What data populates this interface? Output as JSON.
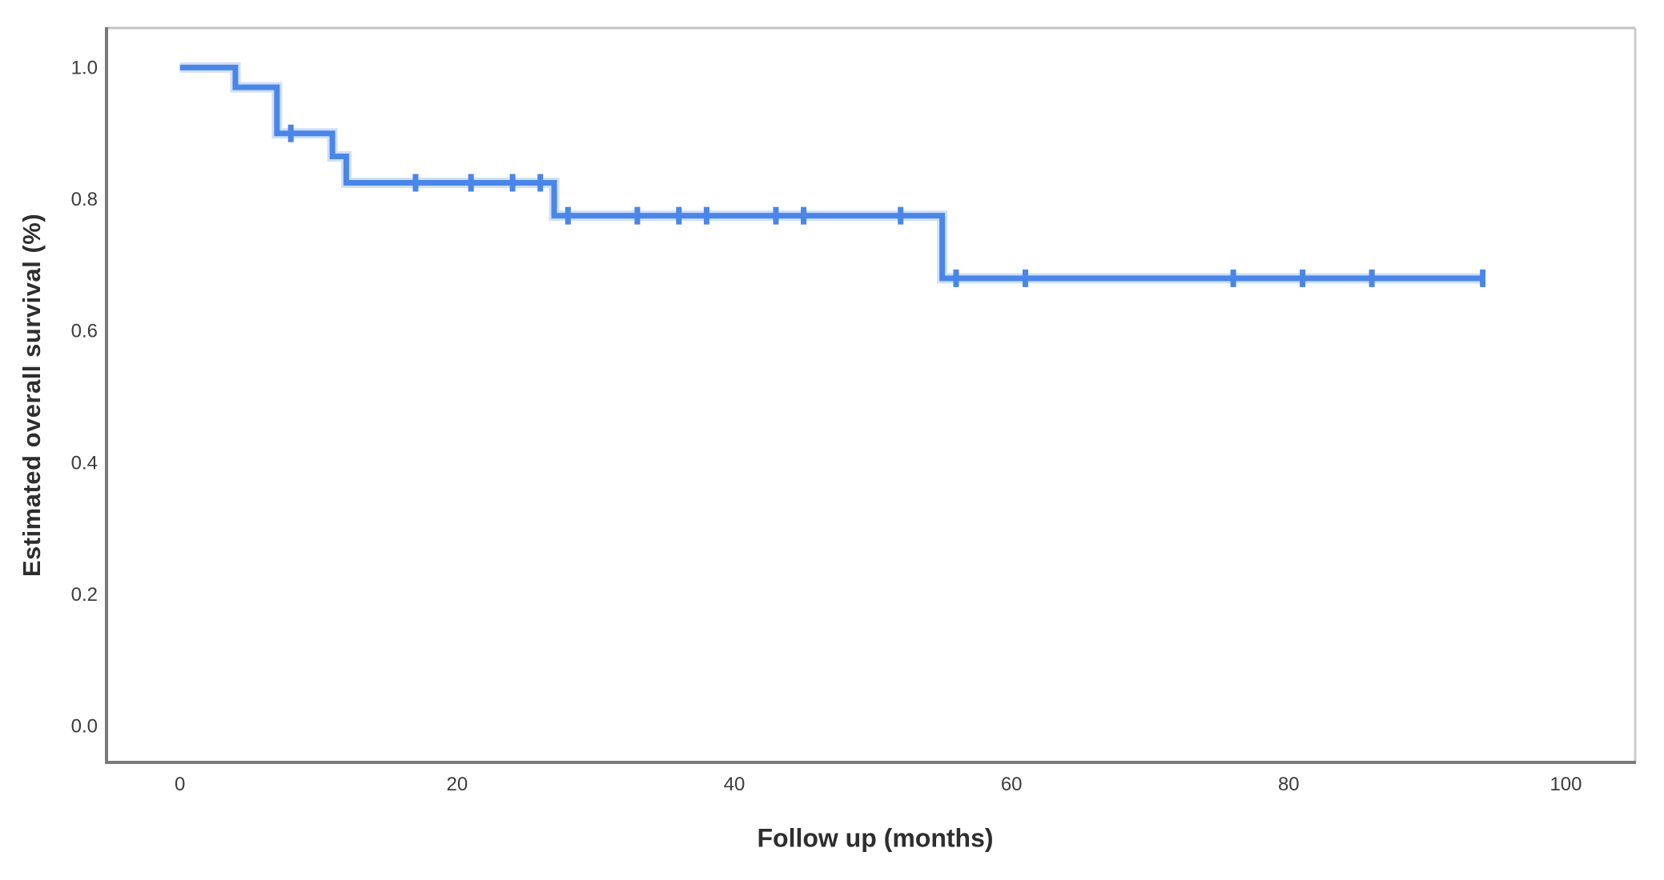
{
  "figure": {
    "background": "#ffffff",
    "text_color": "#3c3c3c"
  },
  "chart_data": {
    "type": "line",
    "subtype": "kaplan-meier-step-curve",
    "title": "",
    "xlabel": "Follow up (months)",
    "ylabel": "Estimated overall survival (%)",
    "xlim": [
      -5.3,
      105
    ],
    "ylim": [
      -0.055,
      1.06
    ],
    "x_ticks": [
      0,
      20,
      40,
      60,
      80,
      100
    ],
    "x_tick_labels": [
      "0",
      "20",
      "40",
      "60",
      "80",
      "100"
    ],
    "y_ticks": [
      0.0,
      0.2,
      0.4,
      0.6,
      0.8,
      1.0
    ],
    "y_tick_labels": [
      "0.0",
      "0.2",
      "0.4",
      "0.6",
      "0.8",
      "1.0"
    ],
    "grid": false,
    "legend": "none",
    "series": [
      {
        "name": "Overall survival",
        "color": "#4a86e8",
        "halo_color": "#a6c6f3",
        "steps": [
          {
            "t": 0,
            "s": 1.0
          },
          {
            "t": 4,
            "s": 0.97
          },
          {
            "t": 7,
            "s": 0.9
          },
          {
            "t": 11,
            "s": 0.865
          },
          {
            "t": 12,
            "s": 0.825
          },
          {
            "t": 27,
            "s": 0.775
          },
          {
            "t": 55,
            "s": 0.68
          }
        ],
        "end_time": 94,
        "censor_marks": [
          {
            "t": 8,
            "s": 0.9
          },
          {
            "t": 17,
            "s": 0.825
          },
          {
            "t": 21,
            "s": 0.825
          },
          {
            "t": 24,
            "s": 0.825
          },
          {
            "t": 26,
            "s": 0.825
          },
          {
            "t": 28,
            "s": 0.775
          },
          {
            "t": 33,
            "s": 0.775
          },
          {
            "t": 36,
            "s": 0.775
          },
          {
            "t": 38,
            "s": 0.775
          },
          {
            "t": 43,
            "s": 0.775
          },
          {
            "t": 45,
            "s": 0.775
          },
          {
            "t": 52,
            "s": 0.775
          },
          {
            "t": 56,
            "s": 0.68
          },
          {
            "t": 61,
            "s": 0.68
          },
          {
            "t": 76,
            "s": 0.68
          },
          {
            "t": 81,
            "s": 0.68
          },
          {
            "t": 86,
            "s": 0.68
          },
          {
            "t": 94,
            "s": 0.68
          }
        ]
      }
    ],
    "frame_colors": {
      "top": "#c2c2c2",
      "right": "#cccccc",
      "bottom": "#7a7a7a",
      "left": "#7a7a7a"
    }
  }
}
